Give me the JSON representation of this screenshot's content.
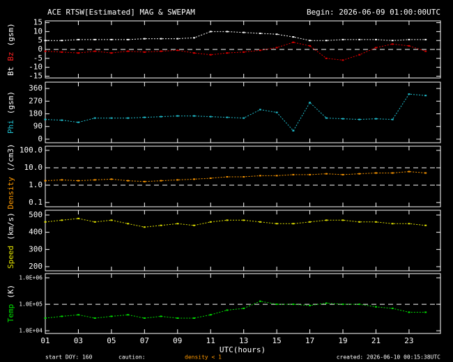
{
  "chart_data": {
    "type": "line",
    "title": "ACE RTSW[Estimated] MAG & SWEPAM",
    "subtitle": "Begin: 2026-06-09 01:00:00UTC",
    "xlabel": "UTC(hours)",
    "notes": {
      "start": "start DOY: 160",
      "caution": "caution:",
      "caution_text": "density < 1",
      "caution_color": "#ff9900",
      "created": "created: 2026-06-10 00:15:38UTC"
    },
    "x": [
      1,
      2,
      3,
      4,
      5,
      6,
      7,
      8,
      9,
      10,
      11,
      12,
      13,
      14,
      15,
      16,
      17,
      18,
      19,
      20,
      21,
      22,
      23,
      24
    ],
    "xlim": [
      1,
      24.9
    ],
    "xticks": [
      {
        "value": 1,
        "label": "01"
      },
      {
        "value": 3,
        "label": "03"
      },
      {
        "value": 5,
        "label": "05"
      },
      {
        "value": 7,
        "label": "07"
      },
      {
        "value": 9,
        "label": "09"
      },
      {
        "value": 11,
        "label": "11"
      },
      {
        "value": 13,
        "label": "13"
      },
      {
        "value": 15,
        "label": "15"
      },
      {
        "value": 17,
        "label": "17"
      },
      {
        "value": 19,
        "label": "19"
      },
      {
        "value": 21,
        "label": "21"
      },
      {
        "value": 23,
        "label": "23"
      }
    ],
    "panels": [
      {
        "ylabel": [
          {
            "text": "Bt",
            "color": "#ffffff"
          },
          {
            "text": "Bz",
            "color": "#ff2020"
          },
          {
            "text": "(gsm)",
            "color": "#ffffff"
          }
        ],
        "ylim": [
          -16,
          16
        ],
        "yticks": [
          15,
          10,
          5,
          0,
          -5,
          -10,
          -15
        ],
        "log": false,
        "reference_lines": [
          0
        ],
        "series": [
          {
            "name": "Bt",
            "color": "#ffffff",
            "values": [
              5,
              5,
              5.5,
              5.5,
              5.5,
              5.5,
              6,
              6,
              6,
              6.5,
              10,
              10,
              9.5,
              9,
              8.5,
              7,
              5,
              5,
              5.5,
              5.5,
              5.5,
              5,
              5.5,
              5.5
            ]
          },
          {
            "name": "Bz",
            "color": "#e00000",
            "values": [
              -1,
              -1.5,
              -2,
              -1,
              -2,
              -1,
              -1.5,
              -1,
              -0.5,
              -2,
              -3,
              -2,
              -1.5,
              -0.5,
              1,
              4,
              2,
              -5,
              -6,
              -3,
              1,
              3,
              2,
              -1
            ]
          }
        ]
      },
      {
        "ylabel": [
          {
            "text": "Phi",
            "color": "#20c0d0"
          },
          {
            "text": "(gsm)",
            "color": "#ffffff"
          }
        ],
        "ylim": [
          -25,
          405
        ],
        "yticks": [
          0,
          90,
          180,
          270,
          360
        ],
        "log": false,
        "reference_lines": [],
        "series": [
          {
            "name": "Phi",
            "color": "#20c0d0",
            "values": [
              140,
              135,
              120,
              150,
              150,
              150,
              155,
              160,
              165,
              165,
              160,
              155,
              150,
              210,
              190,
              60,
              260,
              150,
              145,
              140,
              145,
              140,
              320,
              310
            ]
          }
        ]
      },
      {
        "ylabel": [
          {
            "text": "Density",
            "color": "#ff9900"
          },
          {
            "text": "(/cm3)",
            "color": "#ffffff"
          }
        ],
        "ylim": [
          0.057,
          174
        ],
        "yticks": [
          {
            "value": 0.1,
            "label": "0.1"
          },
          {
            "value": 1,
            "label": "1.0"
          },
          {
            "value": 10,
            "label": "10.0"
          },
          {
            "value": 100,
            "label": "100.0"
          }
        ],
        "log": true,
        "reference_lines": [
          1,
          10
        ],
        "series": [
          {
            "name": "Density",
            "color": "#ff9900",
            "values": [
              1.8,
              2,
              1.8,
              2,
              2.2,
              1.8,
              1.6,
              1.8,
              2,
              2.2,
              2.5,
              3,
              3,
              3.5,
              3.5,
              4,
              4,
              4.5,
              4,
              4.5,
              5,
              5,
              6,
              5
            ]
          }
        ]
      },
      {
        "ylabel": [
          {
            "text": "Speed",
            "color": "#e0e000"
          },
          {
            "text": "(km/s)",
            "color": "#ffffff"
          }
        ],
        "ylim": [
          176,
          528
        ],
        "yticks": [
          200,
          300,
          400,
          500
        ],
        "log": false,
        "reference_lines": [],
        "series": [
          {
            "name": "Speed",
            "color": "#e0e000",
            "values": [
              460,
              470,
              480,
              460,
              470,
              450,
              430,
              440,
              450,
              440,
              460,
              470,
              470,
              460,
              450,
              450,
              460,
              470,
              470,
              460,
              460,
              450,
              450,
              440
            ]
          }
        ]
      },
      {
        "ylabel": [
          {
            "text": "Temp",
            "color": "#00e000"
          },
          {
            "text": "(K)",
            "color": "#ffffff"
          }
        ],
        "ylim": [
          7900,
          1440000
        ],
        "yticks": [
          {
            "value": 10000,
            "label": "1.0E+04"
          },
          {
            "value": 100000,
            "label": "1.0E+05"
          },
          {
            "value": 1000000,
            "label": "1.0E+06"
          }
        ],
        "log": true,
        "reference_lines": [
          100000
        ],
        "series": [
          {
            "name": "Temp",
            "color": "#00e000",
            "values": [
              30000,
              35000,
              40000,
              30000,
              35000,
              40000,
              30000,
              35000,
              30000,
              30000,
              40000,
              60000,
              70000,
              130000,
              100000,
              100000,
              90000,
              110000,
              100000,
              100000,
              80000,
              70000,
              50000,
              50000
            ]
          }
        ]
      }
    ]
  }
}
